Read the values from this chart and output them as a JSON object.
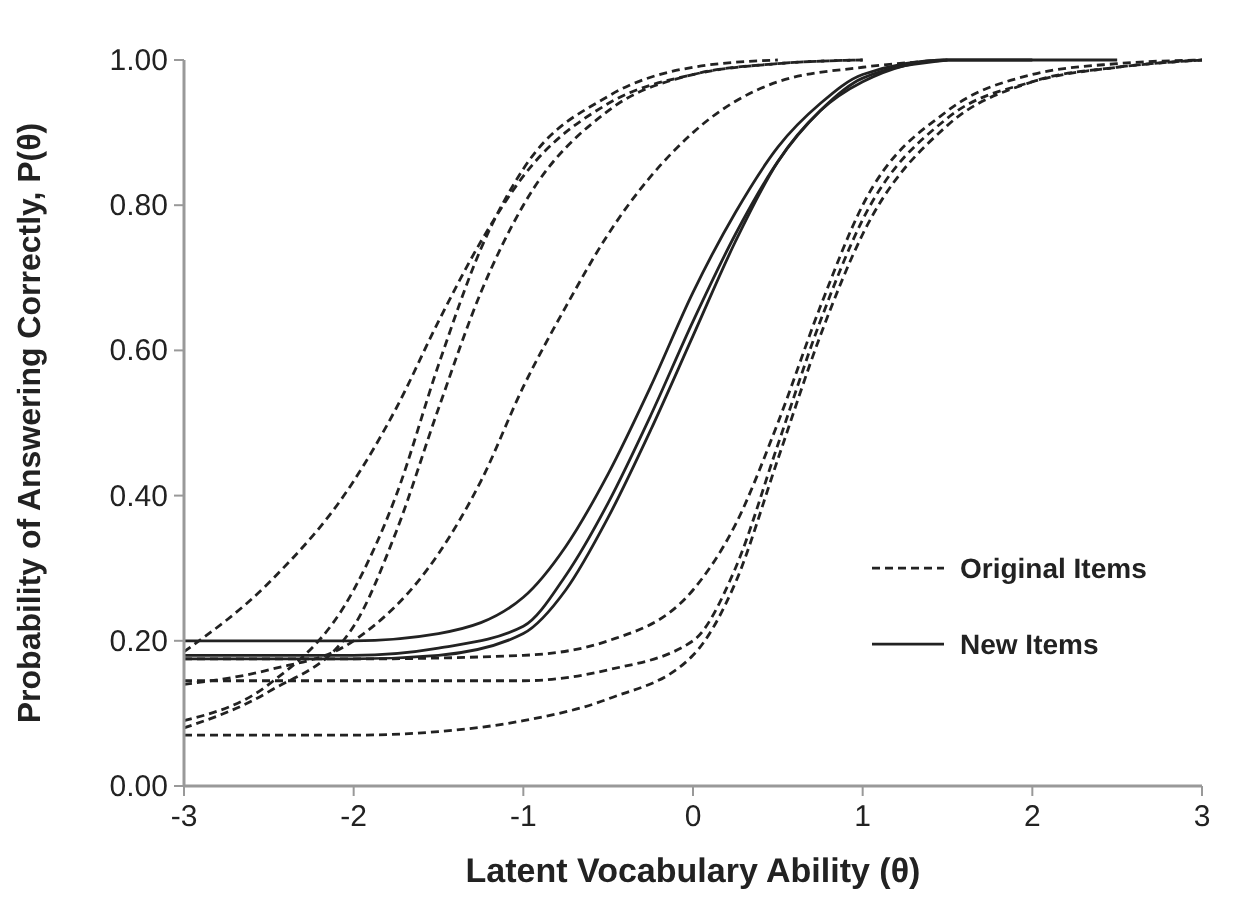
{
  "chart_data": {
    "type": "line",
    "xlabel": "Latent Vocabulary Ability (θ)",
    "ylabel": "Probability of Answering Correctly, P(θ)",
    "xlim": [
      -3,
      3
    ],
    "xticks": [
      -3,
      -2,
      -1,
      0,
      1,
      2,
      3
    ],
    "ylim": [
      0,
      1
    ],
    "yticks": [
      {
        "value": 0,
        "label": "0.00"
      },
      {
        "value": 0.2,
        "label": "0.20"
      },
      {
        "value": 0.4,
        "label": "0.40"
      },
      {
        "value": 0.6,
        "label": "0.60"
      },
      {
        "value": 0.8,
        "label": "0.80"
      },
      {
        "value": 1,
        "label": "1.00"
      }
    ],
    "grid": false,
    "legend": "right",
    "marker": "none",
    "series": [
      {
        "name": "Original Items",
        "color": "#222222",
        "line_style": "dashed",
        "x": [
          -3,
          -2.5,
          -2,
          -1.75,
          -1.5,
          -1.25,
          -1,
          -0.5,
          0,
          0.5,
          1
        ],
        "values": [
          0.185,
          0.28,
          0.42,
          0.52,
          0.64,
          0.75,
          0.84,
          0.94,
          0.98,
          0.995,
          1
        ]
      },
      {
        "color": "#222222",
        "line_style": "dashed",
        "x": [
          -3,
          -2.5,
          -2,
          -1.75,
          -1.5,
          -1.25,
          -1,
          -0.5,
          0,
          0.5
        ],
        "values": [
          0.09,
          0.14,
          0.27,
          0.4,
          0.58,
          0.74,
          0.85,
          0.95,
          0.99,
          1
        ]
      },
      {
        "color": "#222222",
        "line_style": "dashed",
        "x": [
          -3,
          -2.5,
          -2,
          -1.75,
          -1.5,
          -1.25,
          -1,
          -0.5,
          0,
          0.5,
          1
        ],
        "values": [
          0.08,
          0.13,
          0.22,
          0.35,
          0.52,
          0.68,
          0.8,
          0.93,
          0.98,
          0.995,
          1
        ]
      },
      {
        "color": "#222222",
        "line_style": "dashed",
        "x": [
          -3,
          -2.5,
          -2,
          -1.5,
          -1.25,
          -1,
          -0.75,
          -0.5,
          0,
          0.5,
          1,
          1.5
        ],
        "values": [
          0.14,
          0.16,
          0.2,
          0.32,
          0.42,
          0.55,
          0.66,
          0.76,
          0.9,
          0.97,
          0.99,
          1
        ]
      },
      {
        "color": "#222222",
        "line_style": "dashed",
        "x": [
          -3,
          -2,
          -1,
          -0.5,
          0,
          0.25,
          0.5,
          0.75,
          1,
          1.5,
          2,
          2.5,
          3
        ],
        "values": [
          0.175,
          0.175,
          0.18,
          0.2,
          0.27,
          0.36,
          0.5,
          0.66,
          0.8,
          0.93,
          0.98,
          0.995,
          1
        ]
      },
      {
        "color": "#222222",
        "line_style": "dashed",
        "x": [
          -3,
          -2,
          -1,
          -0.5,
          0,
          0.25,
          0.5,
          0.75,
          1,
          1.5,
          2,
          2.5,
          3
        ],
        "values": [
          0.145,
          0.145,
          0.145,
          0.16,
          0.2,
          0.3,
          0.47,
          0.64,
          0.78,
          0.92,
          0.97,
          0.99,
          1
        ]
      },
      {
        "color": "#222222",
        "line_style": "dashed",
        "x": [
          -3,
          -2,
          -1.5,
          -1,
          -0.5,
          0,
          0.25,
          0.5,
          0.75,
          1,
          1.5,
          2,
          2.5,
          3
        ],
        "values": [
          0.07,
          0.07,
          0.075,
          0.09,
          0.12,
          0.18,
          0.28,
          0.45,
          0.62,
          0.76,
          0.91,
          0.97,
          0.99,
          1
        ]
      },
      {
        "name": "New Items",
        "color": "#222222",
        "line_style": "solid",
        "x": [
          -3,
          -2,
          -1.5,
          -1,
          -0.75,
          -0.5,
          -0.25,
          0,
          0.25,
          0.5,
          0.75,
          1,
          1.5,
          2.5
        ],
        "values": [
          0.2,
          0.2,
          0.21,
          0.26,
          0.33,
          0.43,
          0.55,
          0.68,
          0.79,
          0.88,
          0.94,
          0.98,
          1,
          1
        ]
      },
      {
        "color": "#222222",
        "line_style": "solid",
        "x": [
          -3,
          -2,
          -1.5,
          -1,
          -0.75,
          -0.5,
          -0.25,
          0,
          0.25,
          0.5,
          0.75,
          1,
          1.5
        ],
        "values": [
          0.18,
          0.18,
          0.19,
          0.22,
          0.29,
          0.39,
          0.51,
          0.64,
          0.76,
          0.86,
          0.93,
          0.975,
          1
        ]
      },
      {
        "color": "#222222",
        "line_style": "solid",
        "x": [
          -3,
          -2,
          -1.5,
          -1,
          -0.75,
          -0.5,
          -0.25,
          0,
          0.25,
          0.5,
          0.75,
          1,
          1.5,
          2
        ],
        "values": [
          0.175,
          0.175,
          0.18,
          0.21,
          0.27,
          0.37,
          0.49,
          0.62,
          0.75,
          0.86,
          0.93,
          0.97,
          1,
          1
        ]
      }
    ]
  }
}
